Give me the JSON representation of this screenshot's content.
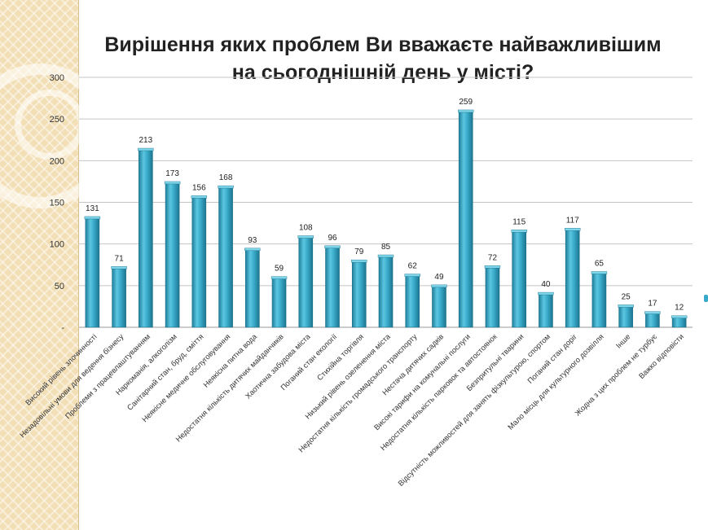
{
  "chart_data": {
    "type": "bar",
    "title": "Вирішення яких проблем Ви вважаєте найважливішим на сьогоднішній день у місті?",
    "title_lines": [
      "Вирішення яких проблем Ви вважаєте найважливішим",
      "на сьогоднішній день у місті?"
    ],
    "xlabel": "",
    "ylabel": "",
    "ylim": [
      0,
      300
    ],
    "yticks": [
      0,
      50,
      100,
      150,
      200,
      250,
      300
    ],
    "ytick_labels": [
      "-",
      "50",
      "100",
      "150",
      "200",
      "250",
      "300"
    ],
    "grid": true,
    "bar_color": "#39a9c9",
    "categories": [
      "Високий рівень злочинності",
      "Незадовільні умови для ведення бізнесу",
      "Проблеми з працевлаштуванням",
      "Наркоманія, алкоголізм",
      "Санітарний стан, бруд, сміття",
      "Неякісне медичне обслуговування",
      "Неякісна питна вода",
      "Недостатня кількість дитячих майданчиків",
      "Хаотична забудова міста",
      "Поганий стан екології",
      "Стихійна торгівля",
      "Низький рівень озеленення міста",
      "Недостатня кількість громадського транспорту",
      "Нестача дитячих садків",
      "Високі тарифи на комунальні послуги",
      "Недостатня кількість парковок та автостоянок",
      "Безпритульні тварини",
      "Відсутність можливостей для занять фізкультурою, спортом",
      "Поганий стан доріг",
      "Мало місць для культурного дозвілля",
      "Інше",
      "Жодна з цих проблем не турбує",
      "Важко відповісти"
    ],
    "values": [
      131,
      71,
      213,
      173,
      156,
      168,
      93,
      59,
      108,
      96,
      79,
      85,
      62,
      49,
      259,
      72,
      115,
      40,
      117,
      65,
      25,
      17,
      12
    ]
  }
}
